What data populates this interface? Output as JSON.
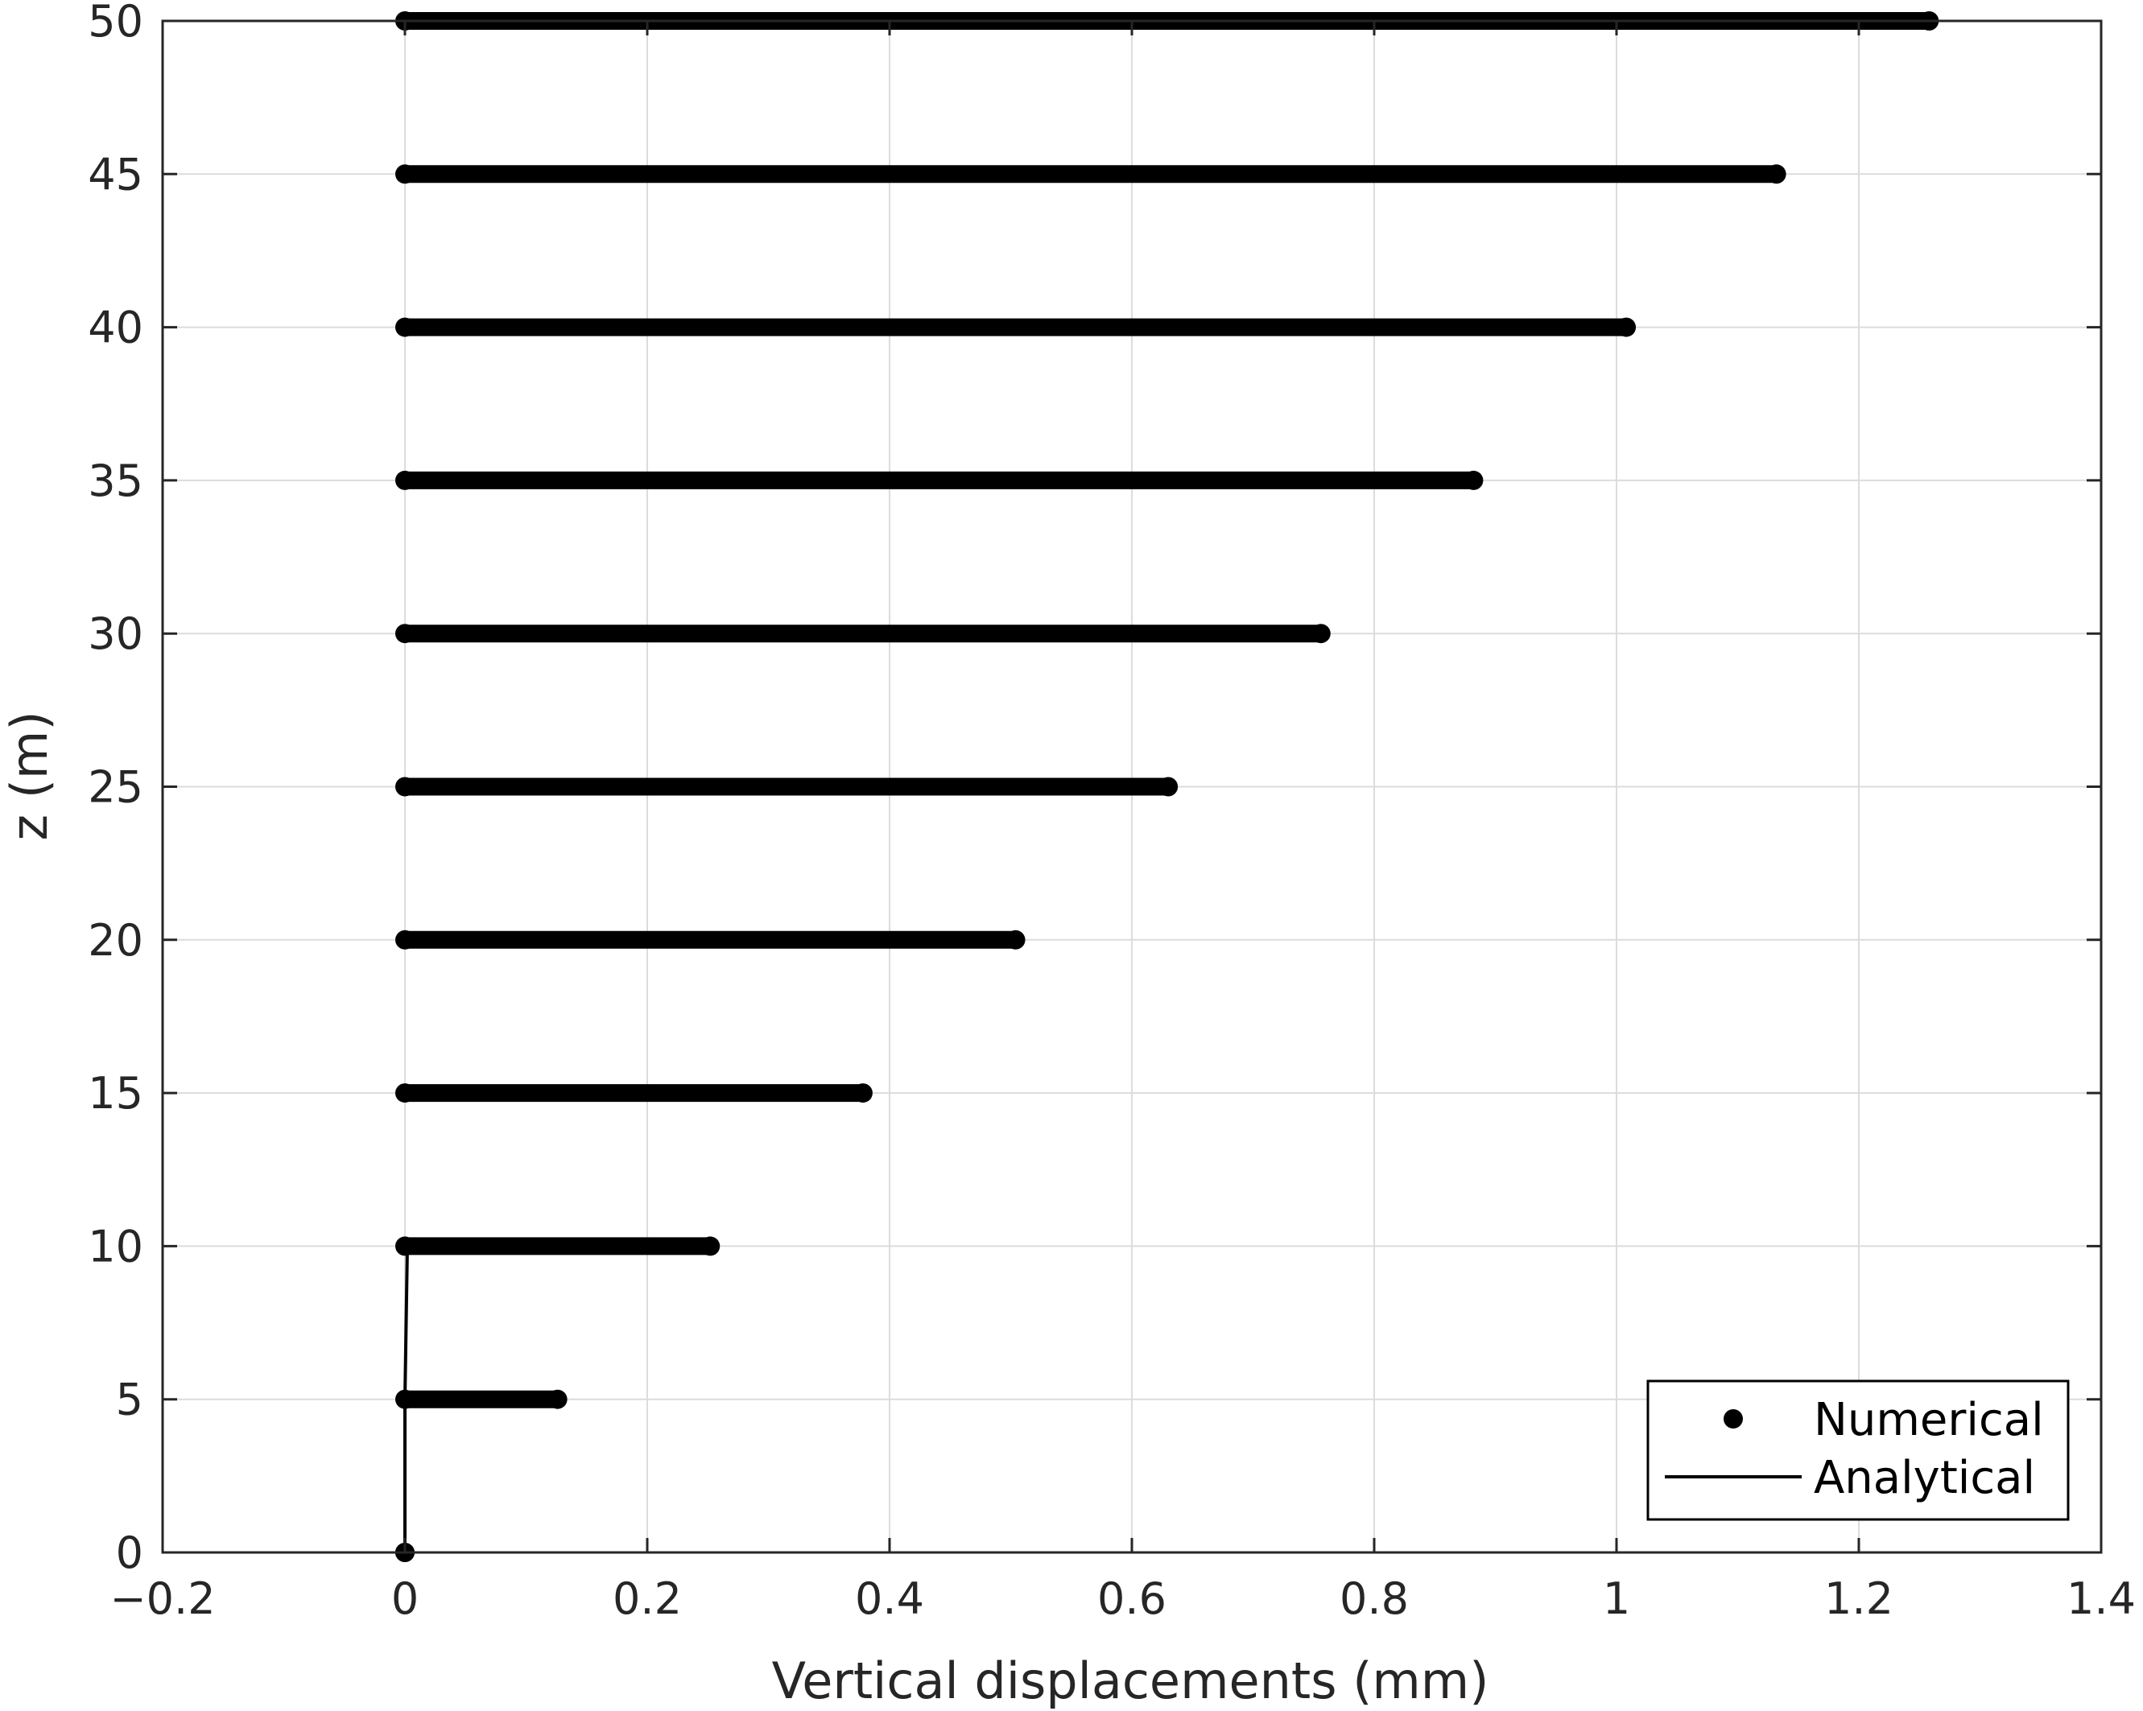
{
  "chart_data": {
    "type": "scatter",
    "xlabel": "Vertical displacements (mm)",
    "ylabel": "z (m)",
    "xlim": [
      -0.2,
      1.4
    ],
    "ylim": [
      0,
      50
    ],
    "xticks": [
      "−0.2",
      "0",
      "0.2",
      "0.4",
      "0.6",
      "0.8",
      "1",
      "1.2",
      "1.4"
    ],
    "xtick_values": [
      -0.2,
      0,
      0.2,
      0.4,
      0.6,
      0.8,
      1,
      1.2,
      1.4
    ],
    "yticks": [
      "0",
      "5",
      "10",
      "15",
      "20",
      "25",
      "30",
      "35",
      "40",
      "45",
      "50"
    ],
    "ytick_values": [
      0,
      5,
      10,
      15,
      20,
      25,
      30,
      35,
      40,
      45,
      50
    ],
    "grid": true,
    "legend_position": "bottom-right",
    "colors": {
      "numerical": "#000000",
      "analytical": "#000000",
      "grid": "#dcdcdc",
      "axes": "#262626"
    },
    "series": [
      {
        "name": "Numerical",
        "style": "markers",
        "note_levels": [
          {
            "z": 0,
            "x_min": 0.0,
            "x_max": 0.0
          },
          {
            "z": 5,
            "x_min": 0.0,
            "x_max": 0.126
          },
          {
            "z": 10,
            "x_min": 0.0,
            "x_max": 0.252
          },
          {
            "z": 15,
            "x_min": 0.0,
            "x_max": 0.378
          },
          {
            "z": 20,
            "x_min": 0.0,
            "x_max": 0.504
          },
          {
            "z": 25,
            "x_min": 0.0,
            "x_max": 0.63
          },
          {
            "z": 30,
            "x_min": 0.0,
            "x_max": 0.756
          },
          {
            "z": 35,
            "x_min": 0.0,
            "x_max": 0.882
          },
          {
            "z": 40,
            "x_min": 0.0,
            "x_max": 1.008
          },
          {
            "z": 45,
            "x_min": 0.0,
            "x_max": 1.132
          },
          {
            "z": 50,
            "x_min": 0.0,
            "x_max": 1.258
          }
        ]
      },
      {
        "name": "Analytical",
        "style": "line",
        "x": [
          0.0,
          0.0,
          0.002
        ],
        "y": [
          0,
          5,
          10
        ]
      }
    ],
    "legend": [
      "Numerical",
      "Analytical"
    ]
  }
}
